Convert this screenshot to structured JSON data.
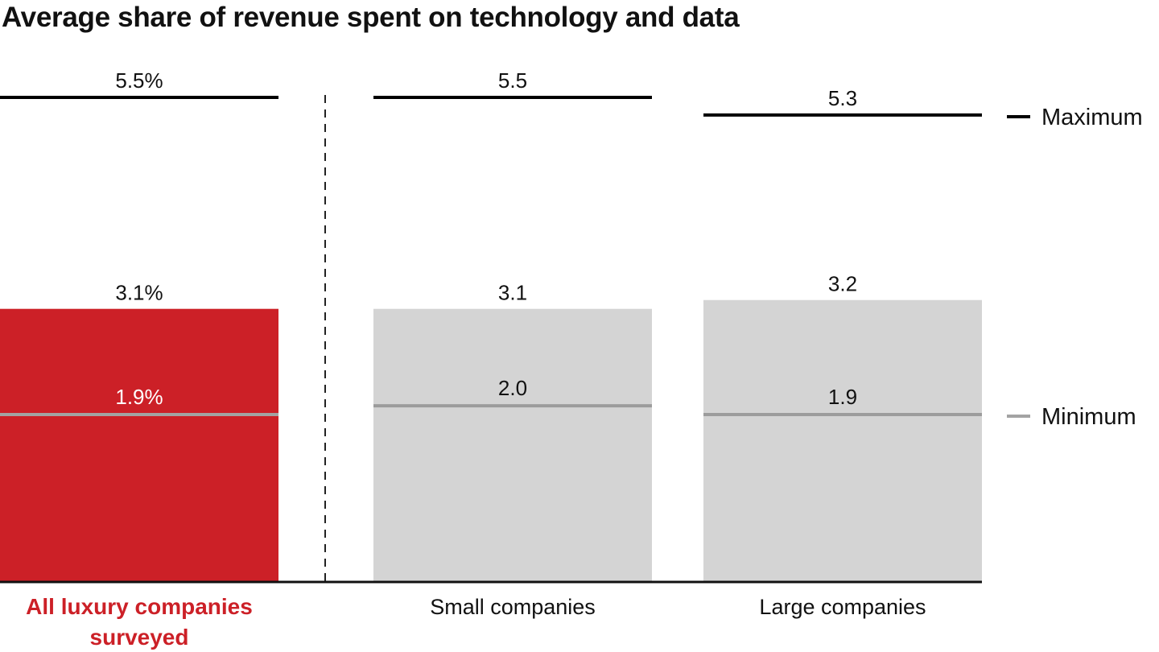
{
  "chart_data": {
    "type": "bar",
    "title": "Average share of revenue spent on technology and data",
    "categories": [
      "All luxury companies surveyed",
      "Small companies",
      "Large companies"
    ],
    "highlight_category": 0,
    "series": [
      {
        "name": "Average",
        "values": [
          3.1,
          3.1,
          3.2
        ],
        "labels": [
          "3.1%",
          "3.1",
          "3.2"
        ]
      },
      {
        "name": "Maximum",
        "values": [
          5.5,
          5.5,
          5.3
        ],
        "labels": [
          "5.5%",
          "5.5",
          "5.3"
        ]
      },
      {
        "name": "Minimum",
        "values": [
          1.9,
          2.0,
          1.9
        ],
        "labels": [
          "1.9%",
          "2.0",
          "1.9"
        ]
      }
    ],
    "legend": [
      {
        "label": "Maximum",
        "color": "#000000"
      },
      {
        "label": "Minimum",
        "color": "#A3A3A3"
      }
    ],
    "legend_position": "right",
    "ylim": [
      0,
      5.5
    ],
    "grid": false,
    "colors": {
      "highlight": "#CC2027",
      "bar": "#D4D4D4",
      "max_line": "#000000",
      "min_line": "#A3A3A3",
      "min_line_on_grey": "#9C9C9C"
    }
  }
}
